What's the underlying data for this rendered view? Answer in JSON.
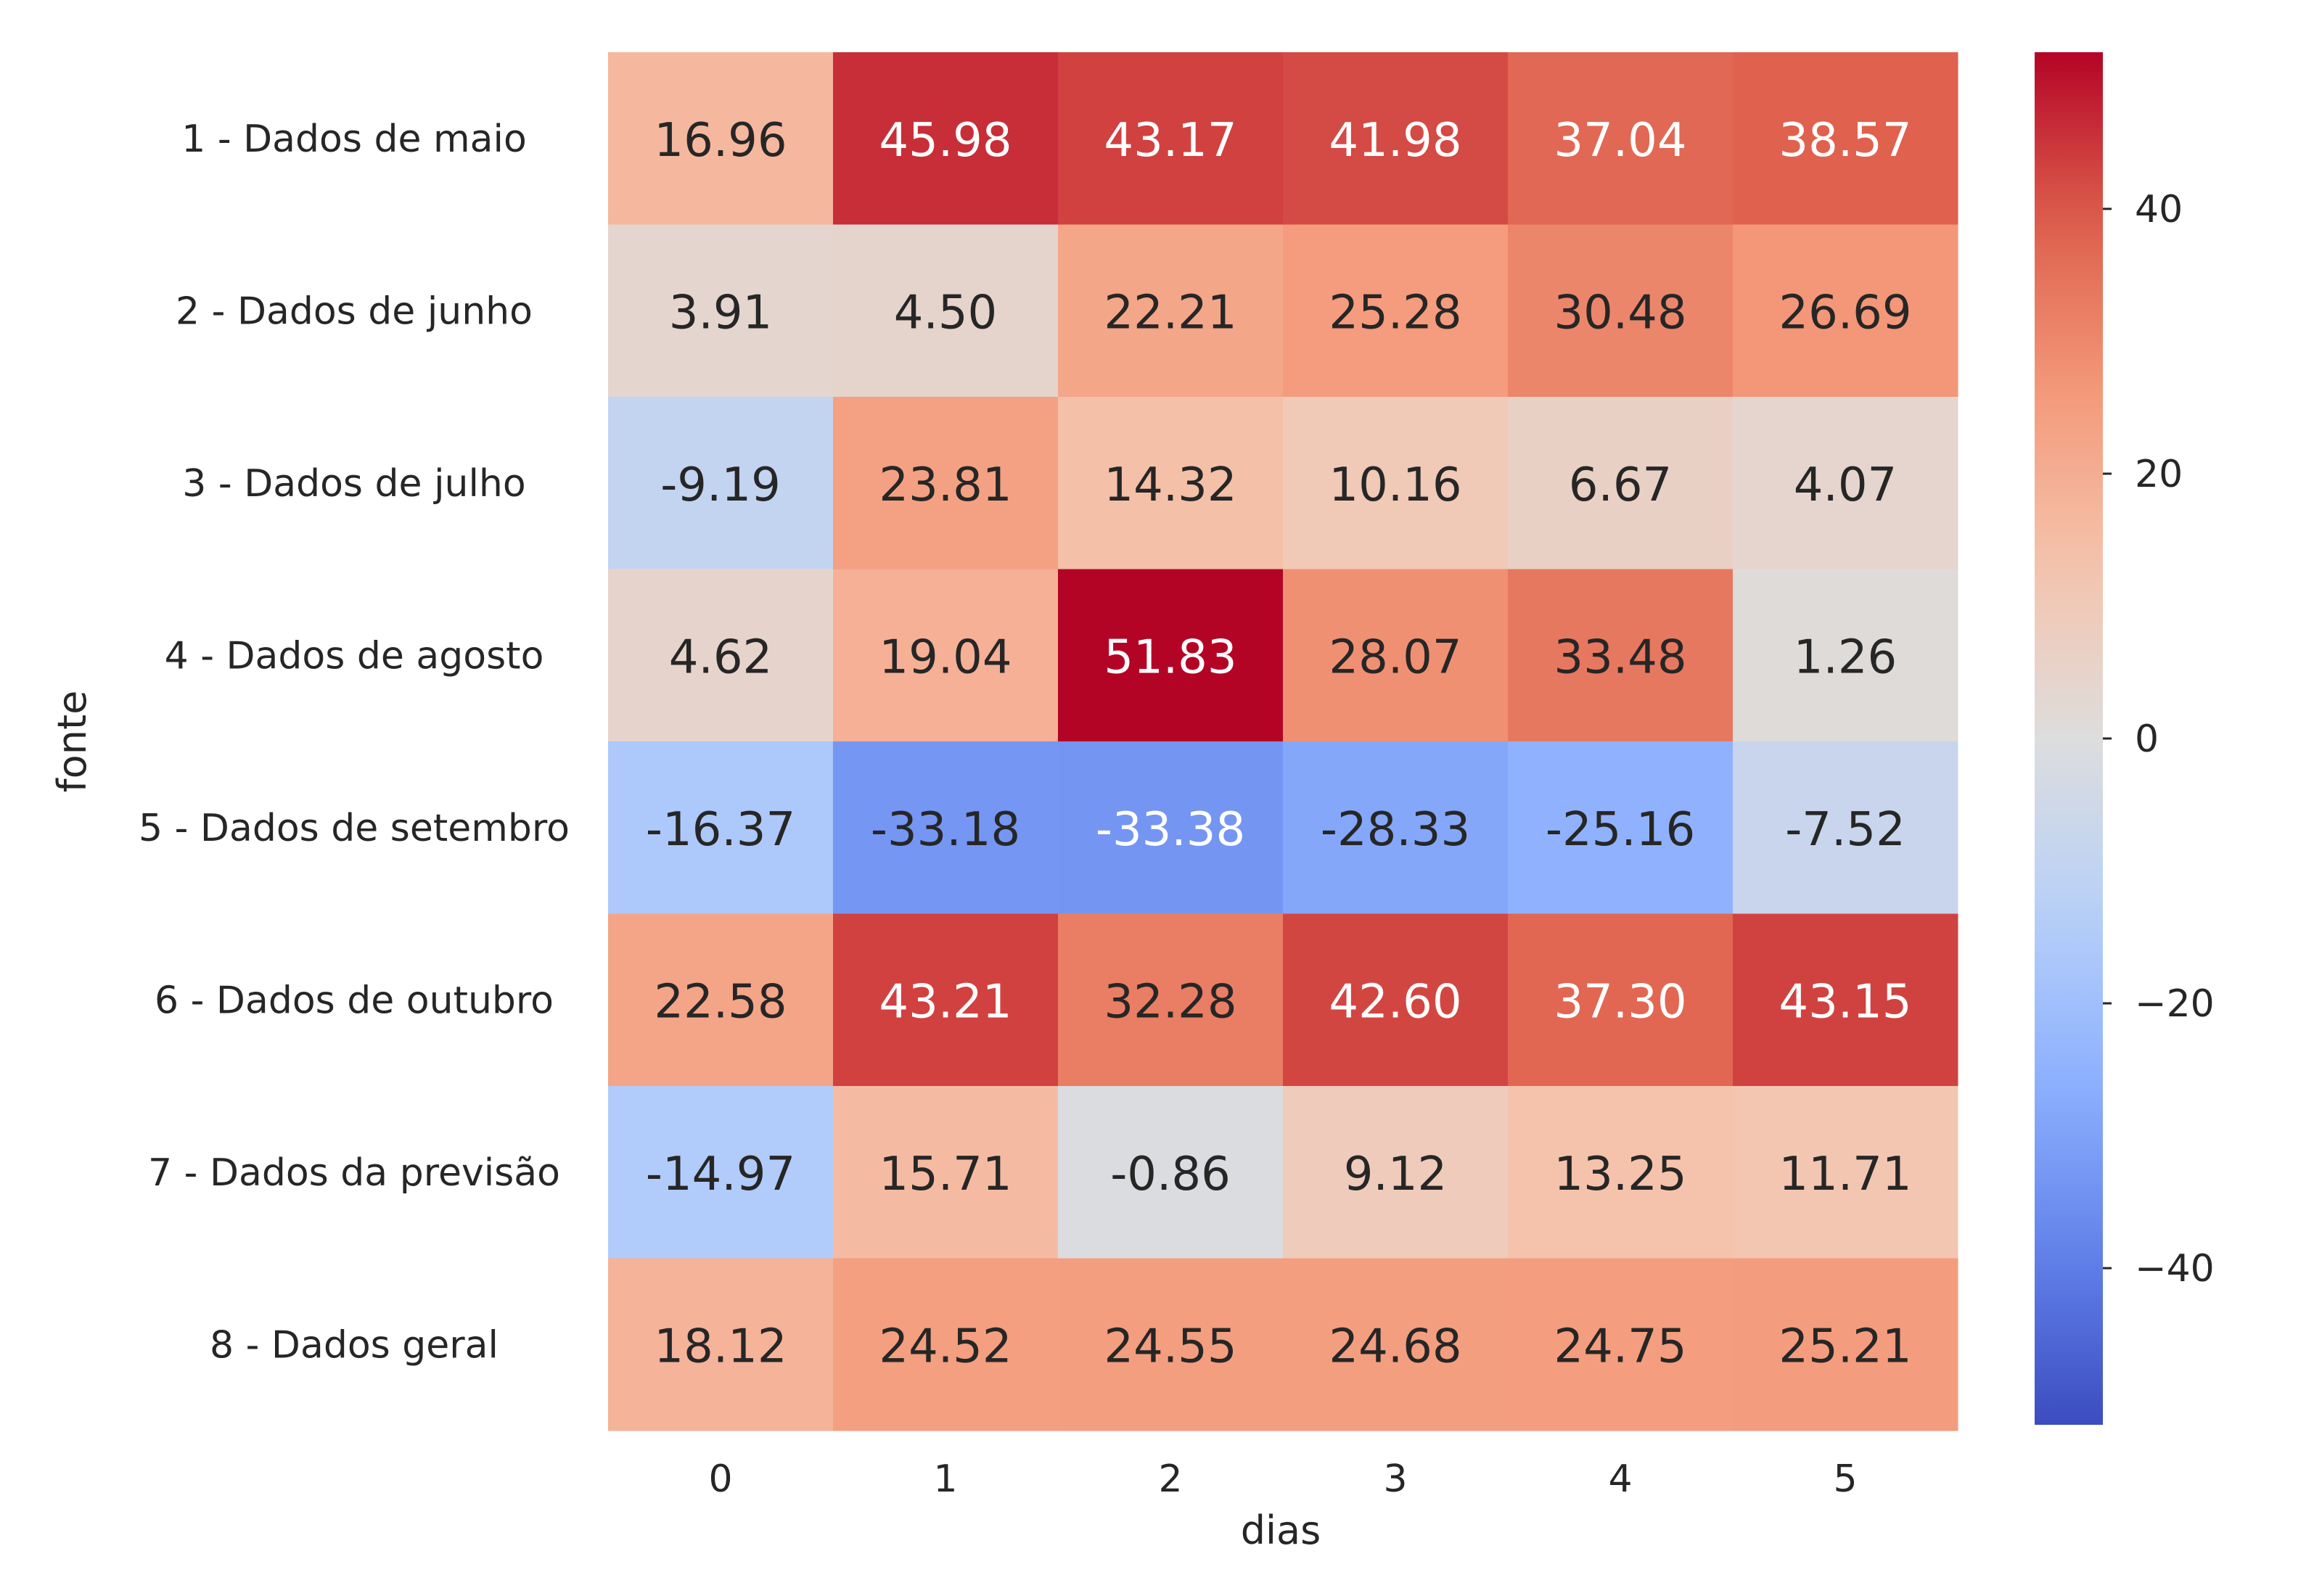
{
  "chart_data": {
    "type": "heatmap",
    "xlabel": "dias",
    "ylabel": "fonte",
    "x_categories": [
      "0",
      "1",
      "2",
      "3",
      "4",
      "5"
    ],
    "y_categories": [
      "1 - Dados de maio",
      "2 - Dados de junho",
      "3 - Dados de julho",
      "4 - Dados de agosto",
      "5 - Dados de setembro",
      "6 - Dados de outubro",
      "7 - Dados da previsão",
      "8 - Dados geral"
    ],
    "values": [
      [
        16.96,
        45.98,
        43.17,
        41.98,
        37.04,
        38.57
      ],
      [
        3.91,
        4.5,
        22.21,
        25.28,
        30.48,
        26.69
      ],
      [
        -9.19,
        23.81,
        14.32,
        10.16,
        6.67,
        4.07
      ],
      [
        4.62,
        19.04,
        51.83,
        28.07,
        33.48,
        1.26
      ],
      [
        -16.37,
        -33.18,
        -33.38,
        -28.33,
        -25.16,
        -7.52
      ],
      [
        22.58,
        43.21,
        32.28,
        42.6,
        37.3,
        43.15
      ],
      [
        -14.97,
        15.71,
        -0.86,
        9.12,
        13.25,
        11.71
      ],
      [
        18.12,
        24.52,
        24.55,
        24.68,
        24.75,
        25.21
      ]
    ],
    "value_format": "2 decimals",
    "colormap": "coolwarm",
    "color_range": [
      -51.83,
      51.83
    ],
    "colorbar": {
      "ticks": [
        40,
        20,
        0,
        -20,
        -40
      ],
      "tick_labels": [
        "40",
        "20",
        "0",
        "−20",
        "−40"
      ]
    },
    "grid": false,
    "legend": "colorbar right"
  }
}
